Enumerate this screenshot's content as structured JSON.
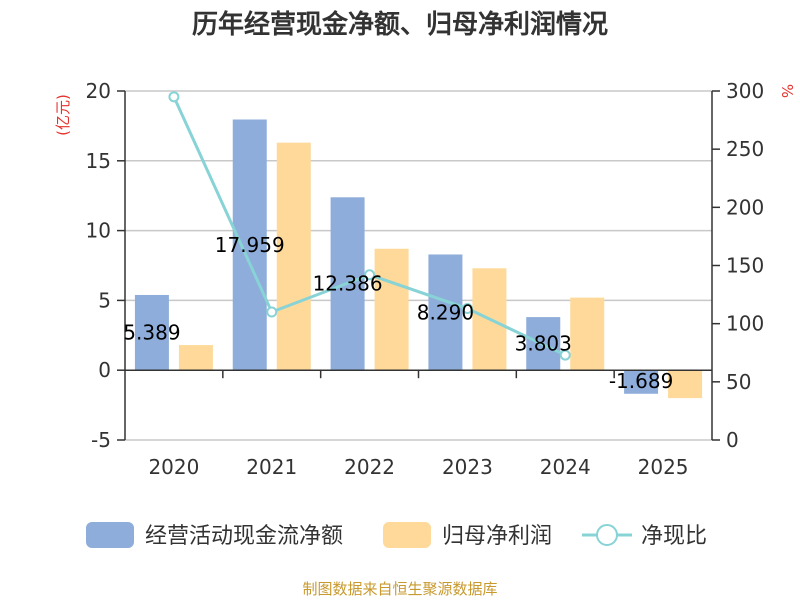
{
  "colors": {
    "cash_flow": "#8eadda",
    "net_profit": "#ffd999",
    "ratio": "#88d3d6",
    "axis_label": "#e5322d",
    "grid": "#c8c8c8",
    "source": "#c8992e"
  },
  "chart_data": {
    "type": "bar",
    "title": "历年经营现金净额、归母净利润情况",
    "categories": [
      "2020",
      "2021",
      "2022",
      "2023",
      "2024",
      "2025"
    ],
    "series": [
      {
        "name": "经营活动现金流净额",
        "type": "bar",
        "axis": "left",
        "values": [
          5.389,
          17.959,
          12.386,
          8.29,
          3.803,
          -1.689
        ],
        "data_labels": [
          "5.389",
          "17.959",
          "12.386",
          "8.290",
          "3.803",
          "-1.689"
        ]
      },
      {
        "name": "归母净利润",
        "type": "bar",
        "axis": "left",
        "values": [
          1.8,
          16.3,
          8.7,
          7.3,
          5.2,
          -2.0
        ]
      },
      {
        "name": "净现比",
        "type": "line",
        "axis": "right",
        "values": [
          295,
          110,
          142,
          113,
          73,
          null
        ]
      }
    ],
    "ylabel_left": "(亿元)",
    "ylabel_right": "%",
    "ylim_left": [
      -5,
      20
    ],
    "yticks_left": [
      "-5",
      "0",
      "5",
      "10",
      "15",
      "20"
    ],
    "ylim_right": [
      0,
      300
    ],
    "yticks_right": [
      "0",
      "50",
      "100",
      "150",
      "200",
      "250",
      "300"
    ],
    "legend": [
      "经营活动现金流净额",
      "归母净利润",
      "净现比"
    ],
    "legend_position": "bottom",
    "grid": true
  },
  "source_text": "制图数据来自恒生聚源数据库"
}
